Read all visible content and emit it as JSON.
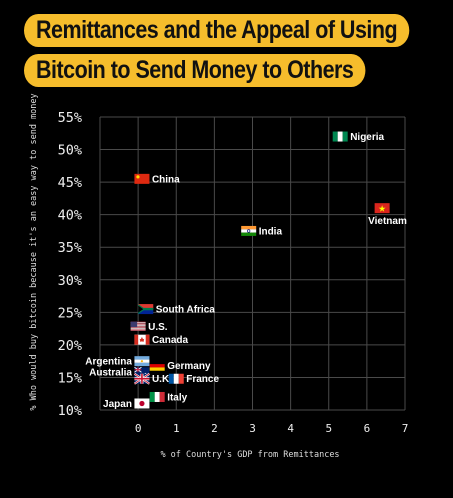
{
  "title_line1": "Remittances and the Appeal of Using",
  "title_line2": "Bitcoin to Send Money to Others",
  "chart_data": {
    "type": "scatter",
    "xlabel": "% of Country's GDP from Remittances",
    "ylabel": "% Who would buy bitcoin because it's an easy way to send money",
    "xlim": [
      -1,
      7
    ],
    "ylim": [
      10,
      55
    ],
    "x_ticks": [
      "0",
      "1",
      "2",
      "3",
      "4",
      "5",
      "6",
      "7"
    ],
    "y_ticks": [
      "10%",
      "15%",
      "20%",
      "25%",
      "30%",
      "35%",
      "40%",
      "45%",
      "50%",
      "55%"
    ],
    "grid": true,
    "points": [
      {
        "label": "Nigeria",
        "x": 5.3,
        "y": 52,
        "flag": "nigeria"
      },
      {
        "label": "China",
        "x": 0.1,
        "y": 45.5,
        "flag": "china"
      },
      {
        "label": "Vietnam",
        "x": 6.4,
        "y": 41,
        "flag": "vietnam"
      },
      {
        "label": "India",
        "x": 2.9,
        "y": 37.5,
        "flag": "india"
      },
      {
        "label": "South Africa",
        "x": 0.2,
        "y": 25.5,
        "flag": "south-africa"
      },
      {
        "label": "U.S.",
        "x": 0.0,
        "y": 22.8,
        "flag": "usa"
      },
      {
        "label": "Canada",
        "x": 0.1,
        "y": 20.8,
        "flag": "canada"
      },
      {
        "label": "Argentina",
        "x": 0.1,
        "y": 17.5,
        "flag": "argentina"
      },
      {
        "label": "Germany",
        "x": 0.5,
        "y": 16.8,
        "flag": "germany"
      },
      {
        "label": "Australia",
        "x": 0.1,
        "y": 15.8,
        "flag": "australia"
      },
      {
        "label": "U.K.",
        "x": 0.1,
        "y": 14.8,
        "flag": "uk"
      },
      {
        "label": "France",
        "x": 1.0,
        "y": 14.8,
        "flag": "france"
      },
      {
        "label": "Italy",
        "x": 0.5,
        "y": 12.0,
        "flag": "italy"
      },
      {
        "label": "Japan",
        "x": 0.1,
        "y": 11.0,
        "flag": "japan"
      }
    ]
  }
}
